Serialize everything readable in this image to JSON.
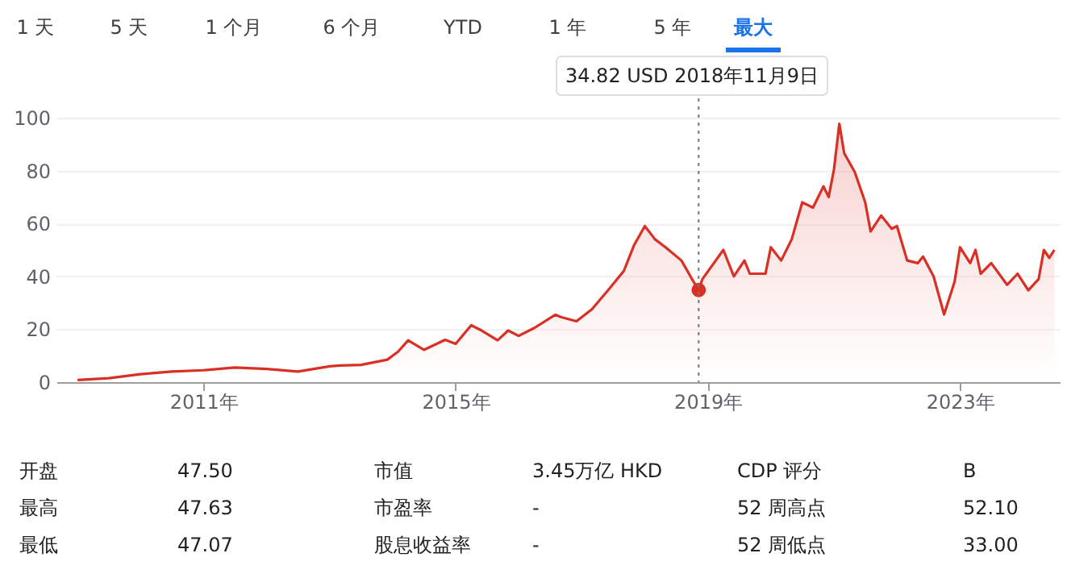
{
  "chart_data": {
    "type": "area",
    "x": [
      "2009-01",
      "2009-07",
      "2010-01",
      "2010-07",
      "2011-01",
      "2011-07",
      "2012-01",
      "2012-07",
      "2013-01",
      "2013-03",
      "2013-07",
      "2013-12",
      "2014-02",
      "2014-04",
      "2014-07",
      "2014-11",
      "2015-01",
      "2015-04",
      "2015-06",
      "2015-09",
      "2015-11",
      "2016-01",
      "2016-04",
      "2016-08",
      "2016-09",
      "2016-12",
      "2017-03",
      "2017-06",
      "2017-09",
      "2017-11",
      "2018-01",
      "2018-03",
      "2018-05",
      "2018-08",
      "2018-10",
      "2018-11-09",
      "2018-12",
      "2019-04",
      "2019-06",
      "2019-08",
      "2019-09",
      "2019-12",
      "2020-01",
      "2020-03",
      "2020-05",
      "2020-07",
      "2020-09",
      "2020-11",
      "2020-12",
      "2021-01",
      "2021-02",
      "2021-03",
      "2021-05",
      "2021-07",
      "2021-08",
      "2021-10",
      "2021-12",
      "2022-01",
      "2022-03",
      "2022-05",
      "2022-06",
      "2022-08",
      "2022-10",
      "2022-12",
      "2023-01",
      "2023-03",
      "2023-04",
      "2023-05",
      "2023-07",
      "2023-10",
      "2023-12",
      "2024-02",
      "2024-04",
      "2024-05",
      "2024-06",
      "2024-07"
    ],
    "series": [
      {
        "color": "#d93025",
        "values": [
          0.8,
          1.5,
          3,
          4,
          4.5,
          5.5,
          5,
          4,
          6,
          6.3,
          6.5,
          8.5,
          11.5,
          15.8,
          12.2,
          16,
          14.5,
          21.5,
          19.5,
          15.8,
          19.5,
          17.5,
          20.5,
          25.5,
          24.6,
          23,
          27.6,
          34.7,
          42,
          52,
          59,
          54,
          51,
          46,
          39,
          34.82,
          39,
          50,
          40,
          46,
          41,
          41,
          51,
          46,
          54,
          68,
          66,
          74,
          70,
          80.5,
          97.7,
          86.6,
          79.5,
          68,
          57,
          63,
          58,
          59,
          46,
          45,
          47.5,
          40,
          25.6,
          38,
          51,
          45,
          50,
          41,
          45,
          36.8,
          41,
          34.7,
          39,
          50,
          47,
          50
        ]
      }
    ],
    "xlim": [
      "2008-09",
      "2024-08"
    ],
    "xticks": [
      {
        "value": "2011-01-01",
        "label": "2011年"
      },
      {
        "value": "2015-01-01",
        "label": "2015年"
      },
      {
        "value": "2019-01-01",
        "label": "2019年"
      },
      {
        "value": "2023-01-01",
        "label": "2023年"
      }
    ],
    "ylim": [
      0,
      100
    ],
    "yticks": [
      0,
      20,
      40,
      60,
      80,
      100
    ],
    "grid": "y",
    "ref_lines": [
      {
        "axis": "x",
        "value": "2018-11-09",
        "line_style": "dotted",
        "color": "#777777"
      }
    ],
    "annotations": [
      "1 天",
      "5 天",
      "1 个月",
      "6 个月",
      "YTD",
      "1 年",
      "5 年",
      "最大",
      "开盘",
      "47.50",
      "市值",
      "3.45万亿 HKD",
      "CDP 评分",
      "B",
      "最高",
      "47.63",
      "市盈率",
      "-",
      "52 周高点",
      "52.10",
      "最低",
      "47.07",
      "股息收益率",
      "-",
      "52 周低点",
      "33.00",
      "34.82 USD  2018年11月9日"
    ]
  }
}
